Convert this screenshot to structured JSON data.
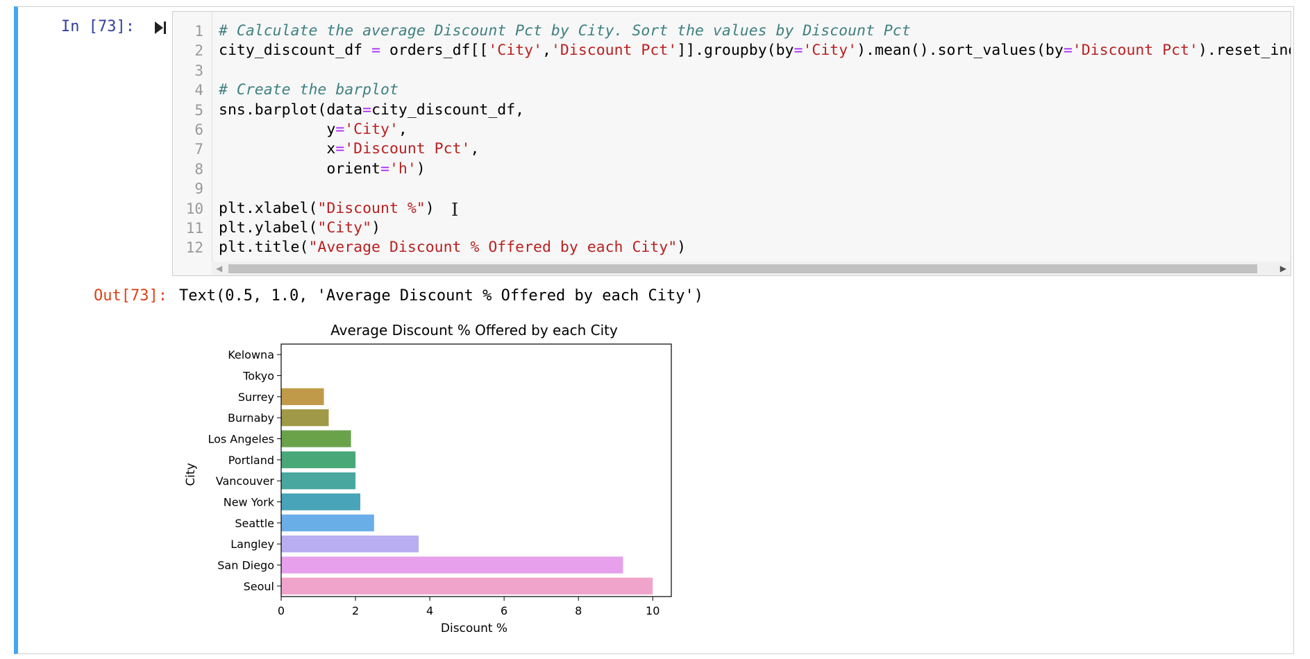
{
  "cell": {
    "in_prompt": "In [73]:",
    "out_prompt": "Out[73]:",
    "output_text": "Text(0.5, 1.0, 'Average Discount % Offered by each City')"
  },
  "code": {
    "line_numbers": [
      "1",
      "2",
      "3",
      "4",
      "5",
      "6",
      "7",
      "8",
      "9",
      "10",
      "11",
      "12"
    ]
  },
  "colors": {
    "cell_border_active": "#42a5f5",
    "in_prompt": "#303f9f",
    "out_prompt": "#d84315"
  },
  "chart_data": {
    "type": "bar",
    "orientation": "horizontal",
    "title": "Average Discount % Offered by each City",
    "xlabel": "Discount %",
    "ylabel": "City",
    "xlim": [
      0,
      10.5
    ],
    "xticks": [
      0,
      2,
      4,
      6,
      8,
      10
    ],
    "categories": [
      "Kelowna",
      "Tokyo",
      "Surrey",
      "Burnaby",
      "Los Angeles",
      "Portland",
      "Vancouver",
      "New York",
      "Seattle",
      "Langley",
      "San Diego",
      "Seoul"
    ],
    "values": [
      0,
      0,
      1.15,
      1.28,
      1.88,
      2.0,
      2.0,
      2.13,
      2.5,
      3.7,
      9.2,
      10.0
    ],
    "colors": [
      "#e8a0a0",
      "#e6a580",
      "#c09a48",
      "#a09a48",
      "#6aa24a",
      "#48a878",
      "#48a8a0",
      "#48a4b8",
      "#6aaee8",
      "#b8aef0",
      "#e6a0ec",
      "#f0a4cc"
    ],
    "grid": false
  }
}
